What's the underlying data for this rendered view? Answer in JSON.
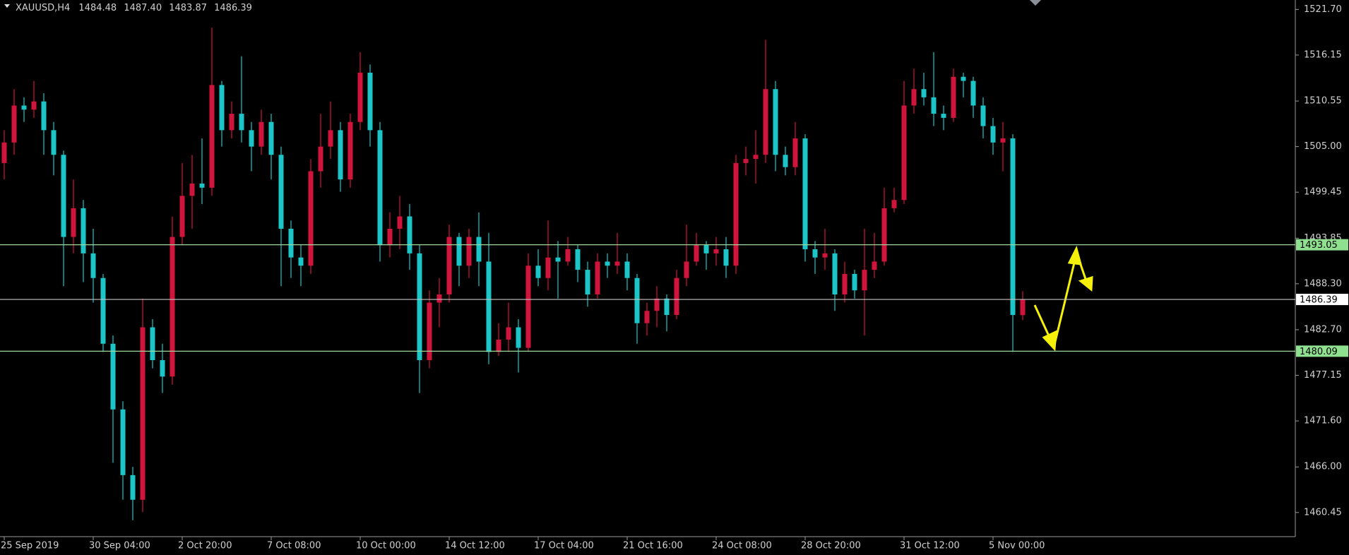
{
  "chart_data": {
    "type": "candlestick",
    "header": {
      "symbol": "XAUUSD,H4",
      "ohlc": [
        {
          "value": 1484.48,
          "label": "1484.48"
        },
        {
          "value": 1487.4,
          "label": "1487.40"
        },
        {
          "value": 1483.87,
          "label": "1483.87"
        },
        {
          "value": 1486.39,
          "label": "1486.39"
        }
      ]
    },
    "up_color": "#d0143c",
    "down_color": "#1cc6c8",
    "background": "#000000",
    "categories": [
      "25 Sep 2019",
      null,
      null,
      null,
      null,
      null,
      null,
      null,
      null,
      "30 Sep 04:00",
      null,
      null,
      null,
      null,
      null,
      null,
      null,
      null,
      "2 Oct 20:00",
      null,
      null,
      null,
      null,
      null,
      null,
      null,
      null,
      "7 Oct 08:00",
      null,
      null,
      null,
      null,
      null,
      null,
      null,
      null,
      "10 Oct 00:00",
      null,
      null,
      null,
      null,
      null,
      null,
      null,
      null,
      "14 Oct 12:00",
      null,
      null,
      null,
      null,
      null,
      null,
      null,
      null,
      "17 Oct 04:00",
      null,
      null,
      null,
      null,
      null,
      null,
      null,
      null,
      "21 Oct 16:00",
      null,
      null,
      null,
      null,
      null,
      null,
      null,
      null,
      "24 Oct 08:00",
      null,
      null,
      null,
      null,
      null,
      null,
      null,
      null,
      "28 Oct 20:00",
      null,
      null,
      null,
      null,
      null,
      null,
      null,
      null,
      null,
      "31 Oct 12:00",
      null,
      null,
      null,
      null,
      null,
      null,
      null,
      null,
      "5 Nov 00:00",
      null,
      null,
      null
    ],
    "open": [
      1503,
      1505.5,
      1510,
      1509.5,
      1510.5,
      1507,
      1504,
      1494,
      1497.5,
      1492,
      1489,
      1481,
      1473,
      1465,
      1462,
      1483,
      1479,
      1477,
      1494,
      1499,
      1500.5,
      1500,
      1512.5,
      1507,
      1509,
      1507,
      1505,
      1508,
      1504,
      1495,
      1491.5,
      1490.5,
      1502,
      1505,
      1507,
      1501,
      1508,
      1514,
      1507,
      1493,
      1495,
      1496.5,
      1492,
      1479,
      1486,
      1487,
      1494,
      1490.5,
      1494,
      1491,
      1480,
      1481.5,
      1483,
      1480.5,
      1490.5,
      1489,
      1491.5,
      1491,
      1492.5,
      1490,
      1487,
      1491,
      1490.5,
      1491,
      1489,
      1483.5,
      1485,
      1486.5,
      1484.5,
      1489,
      1491,
      1493,
      1492,
      1492.5,
      1490.5,
      1503,
      1503.5,
      1504,
      1512,
      1504,
      1502.5,
      1506,
      1492.5,
      1491.5,
      1492,
      1487,
      1489.5,
      1487.5,
      1490,
      1491,
      1497.5,
      1498.5,
      1510,
      1512,
      1511,
      1509,
      1508.5,
      1513.5,
      1513,
      1510,
      1507.5,
      1505.5,
      1506,
      1484.48
    ],
    "high": [
      1507,
      1512,
      1511,
      1513,
      1511.5,
      1508,
      1504.5,
      1501,
      1498.5,
      1495,
      1489.5,
      1482,
      1474,
      1466,
      1486.5,
      1484,
      1481,
      1496.5,
      1503,
      1504,
      1506,
      1519.5,
      1513,
      1510.5,
      1516,
      1508,
      1509.5,
      1509,
      1505,
      1496,
      1493,
      1503.5,
      1509,
      1510.5,
      1508,
      1509,
      1516.5,
      1515,
      1508,
      1497,
      1499,
      1498,
      1493,
      1487.5,
      1489,
      1495.5,
      1494.5,
      1495,
      1497,
      1494.5,
      1483.5,
      1486,
      1484,
      1492,
      1492.5,
      1496,
      1493.5,
      1494,
      1493,
      1491,
      1492,
      1492,
      1494.5,
      1492,
      1489.5,
      1486,
      1488,
      1487,
      1490,
      1495.5,
      1494.5,
      1493.5,
      1494,
      1494,
      1504,
      1505,
      1507,
      1518,
      1513,
      1505,
      1508,
      1506.5,
      1493.5,
      1495,
      1492.5,
      1491,
      1490,
      1495,
      1494.5,
      1500,
      1500,
      1513,
      1514.5,
      1514,
      1516.5,
      1510,
      1514.5,
      1514,
      1513.5,
      1511,
      1508.5,
      1508,
      1506.5,
      1487.4
    ],
    "low": [
      1501,
      1504,
      1508,
      1508.5,
      1504,
      1501.5,
      1488,
      1492,
      1488.5,
      1486,
      1480,
      1466.5,
      1462,
      1459.5,
      1460.5,
      1478,
      1475,
      1476,
      1493,
      1495,
      1498,
      1499,
      1505,
      1506,
      1505.5,
      1502,
      1504,
      1501,
      1488,
      1489,
      1488,
      1489.5,
      1500,
      1503.5,
      1499.5,
      1500,
      1507,
      1505,
      1491,
      1491.5,
      1492.5,
      1490,
      1475,
      1478,
      1483,
      1486,
      1488,
      1489,
      1488,
      1478.5,
      1479.5,
      1480,
      1477.5,
      1480,
      1488,
      1487.5,
      1486.5,
      1490.5,
      1488.5,
      1485.5,
      1486.5,
      1489,
      1489.5,
      1487.5,
      1481,
      1482,
      1483,
      1482.5,
      1484,
      1488,
      1490.5,
      1490,
      1490.5,
      1489,
      1489.5,
      1501.5,
      1500.5,
      1503,
      1502,
      1501.5,
      1501.5,
      1491,
      1489.5,
      1490,
      1485,
      1486,
      1486.5,
      1482,
      1489,
      1490.5,
      1497,
      1498,
      1509,
      1510,
      1507.5,
      1507,
      1508,
      1511,
      1508.5,
      1506,
      1504,
      1502,
      1480,
      1483.87
    ],
    "close": [
      1505.5,
      1510,
      1509.5,
      1510.5,
      1507,
      1504,
      1494,
      1497.5,
      1492,
      1489,
      1481,
      1473,
      1465,
      1462,
      1483,
      1479,
      1477,
      1494,
      1499,
      1500.5,
      1500,
      1512.5,
      1507,
      1509,
      1507,
      1505,
      1508,
      1504,
      1495,
      1491.5,
      1490.5,
      1502,
      1505,
      1507,
      1501,
      1508,
      1514,
      1507,
      1493,
      1495,
      1496.5,
      1492,
      1479,
      1486,
      1487,
      1494,
      1490.5,
      1494,
      1491,
      1480,
      1481.5,
      1483,
      1480.5,
      1490.5,
      1489,
      1491.5,
      1491,
      1492.5,
      1490,
      1487,
      1491,
      1490.5,
      1491,
      1489,
      1483.5,
      1485,
      1486.5,
      1484.5,
      1489,
      1491,
      1493,
      1492,
      1492.5,
      1490.5,
      1503,
      1503.5,
      1504,
      1512,
      1504,
      1502.5,
      1506,
      1492.5,
      1491.5,
      1492,
      1487,
      1489.5,
      1487.5,
      1490,
      1491,
      1497.5,
      1498.5,
      1510,
      1512,
      1511,
      1509,
      1508.5,
      1513.5,
      1513,
      1510,
      1507.5,
      1505.5,
      1506,
      1484.5,
      1486.39
    ],
    "ylim": [
      1457.51,
      1522.85
    ],
    "yticks": [
      {
        "value": 1521.7,
        "label": "1521.70"
      },
      {
        "value": 1516.15,
        "label": "1516.15"
      },
      {
        "value": 1510.55,
        "label": "1510.55"
      },
      {
        "value": 1505,
        "label": "1505.00"
      },
      {
        "value": 1499.45,
        "label": "1499.45"
      },
      {
        "value": 1493.85,
        "label": "1493.85"
      },
      {
        "value": 1488.3,
        "label": "1488.30"
      },
      {
        "value": 1482.7,
        "label": "1482.70"
      },
      {
        "value": 1477.15,
        "label": "1477.15"
      },
      {
        "value": 1471.6,
        "label": "1471.60"
      },
      {
        "value": 1466,
        "label": "1466.00"
      },
      {
        "value": 1460.45,
        "label": "1460.45"
      }
    ],
    "hlines": [
      {
        "value": 1493.05,
        "color": "#9ed89e",
        "label_bg": "#8fe08f"
      },
      {
        "value": 1486.39,
        "color": "#c4c4c4",
        "label_bg": "#ffffff"
      },
      {
        "value": 1480.09,
        "color": "#9ed89e",
        "label_bg": "#8fe08f"
      }
    ]
  }
}
